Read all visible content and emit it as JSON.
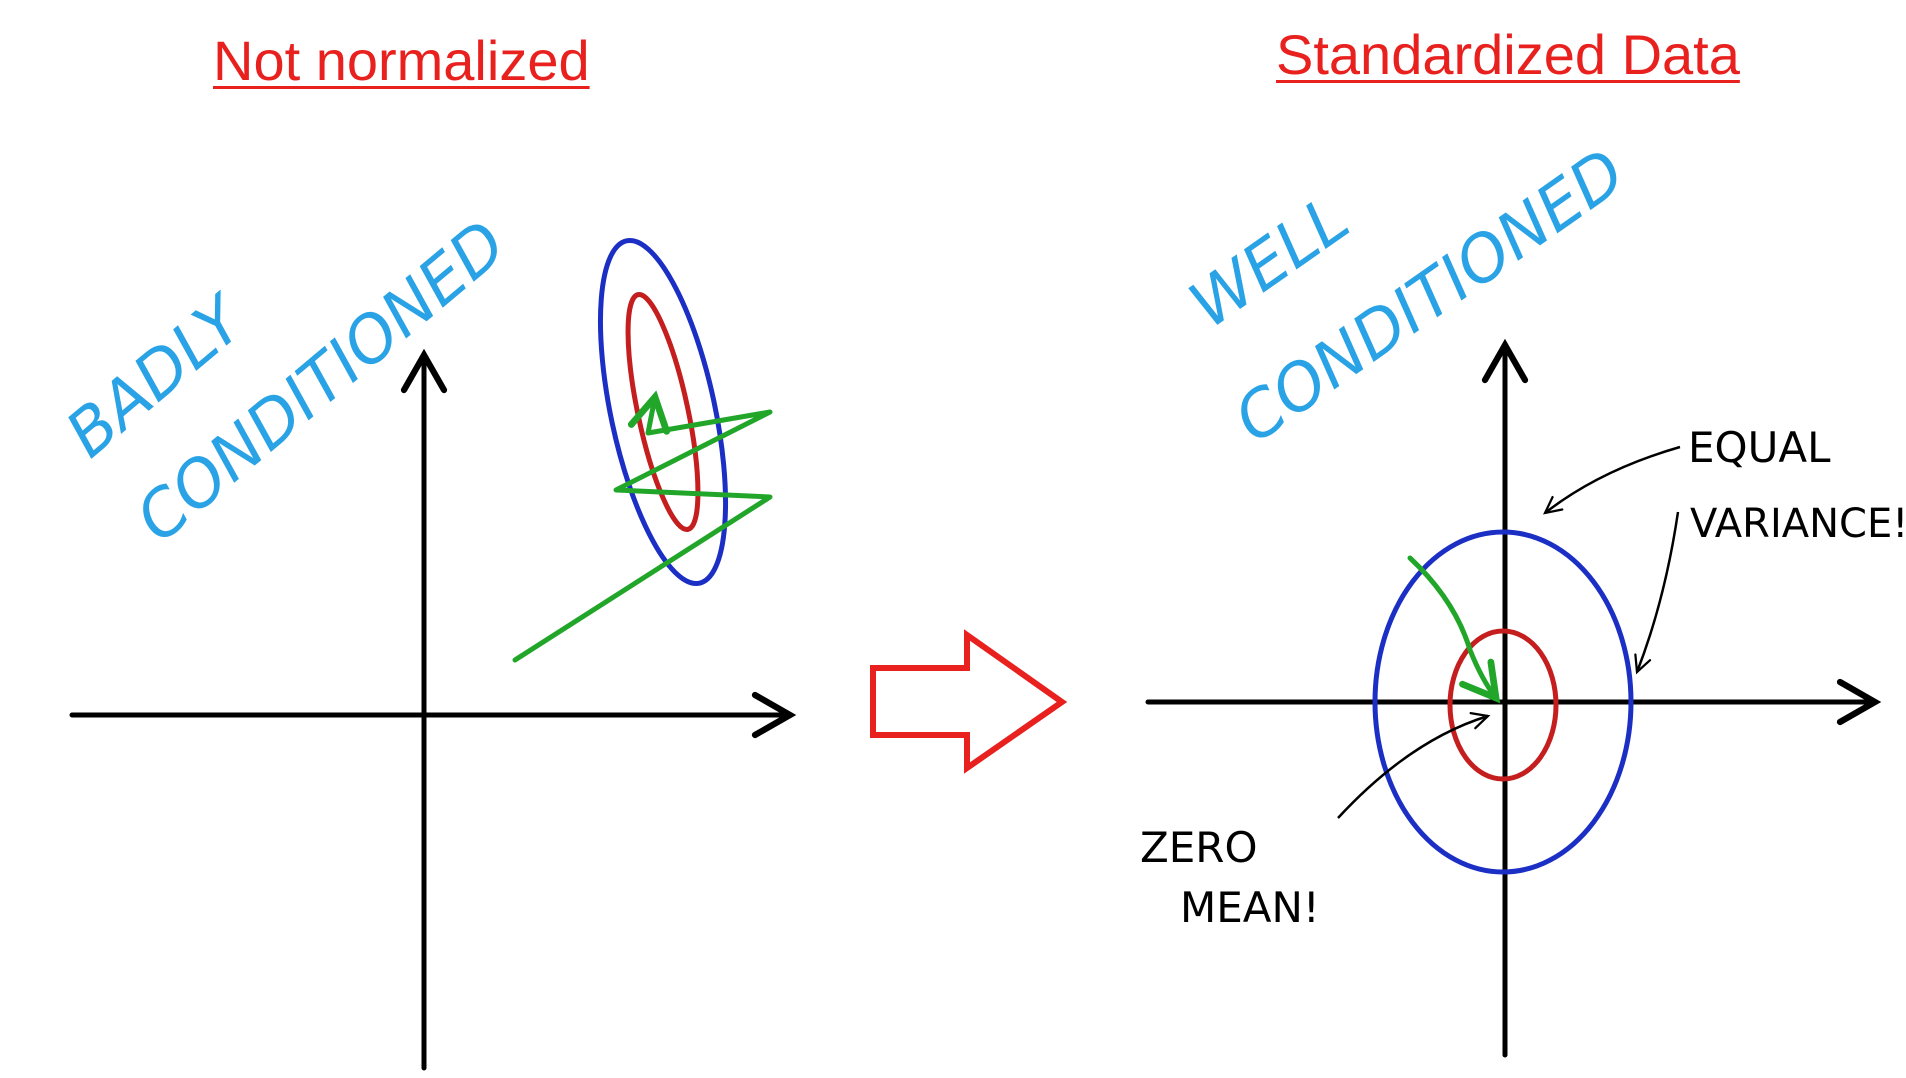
{
  "panels": {
    "left": {
      "title": "Not normalized",
      "handwritten": [
        "BADLY",
        "CONDITIONED"
      ]
    },
    "right": {
      "title": "Standardized Data",
      "handwritten": [
        "WELL",
        "CONDITIONED"
      ],
      "annotations": {
        "equal": "EQUAL",
        "variance": "VARIANCE!",
        "zero": "ZERO",
        "mean": "MEAN!"
      }
    }
  },
  "colors": {
    "title": "#e8211f",
    "handwritten_blue": "#2aa3e6",
    "outer_ellipse": "#1c2fc4",
    "inner_ellipse": "#c41e1e",
    "path_green": "#21a62a",
    "axes": "#000000",
    "arrow_outline": "#e8211f"
  }
}
